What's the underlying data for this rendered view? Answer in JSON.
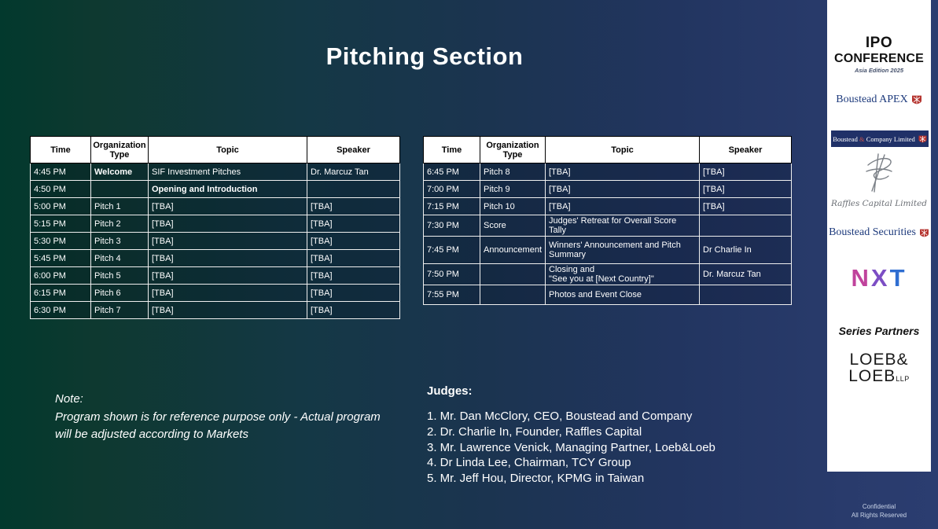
{
  "title": "Pitching Section",
  "table_headers": [
    "Time",
    "Organization Type",
    "Topic",
    "Speaker"
  ],
  "left_table": {
    "rows": [
      {
        "cells": [
          "4:45 PM",
          "Welcome",
          "SIF Investment Pitches",
          "Dr. Marcuz Tan"
        ],
        "bold": [
          1
        ]
      },
      {
        "cells": [
          "4:50 PM",
          "",
          "Opening and Introduction",
          ""
        ],
        "bold": [
          2
        ]
      },
      {
        "cells": [
          "5:00 PM",
          "Pitch 1",
          "[TBA]",
          "[TBA]"
        ]
      },
      {
        "cells": [
          "5:15 PM",
          "Pitch 2",
          "[TBA]",
          "[TBA]"
        ]
      },
      {
        "cells": [
          "5:30 PM",
          "Pitch 3",
          "[TBA]",
          "[TBA]"
        ]
      },
      {
        "cells": [
          "5:45 PM",
          "Pitch 4",
          "[TBA]",
          "[TBA]"
        ]
      },
      {
        "cells": [
          "6:00 PM",
          "Pitch 5",
          "[TBA]",
          "[TBA]"
        ]
      },
      {
        "cells": [
          "6:15 PM",
          "Pitch 6",
          "[TBA]",
          "[TBA]"
        ]
      },
      {
        "cells": [
          "6:30 PM",
          "Pitch 7",
          "[TBA]",
          "[TBA]"
        ]
      }
    ]
  },
  "right_table": {
    "rows": [
      {
        "cells": [
          "6:45 PM",
          "Pitch 8",
          "[TBA]",
          "[TBA]"
        ]
      },
      {
        "cells": [
          "7:00 PM",
          "Pitch 9",
          "[TBA]",
          "[TBA]"
        ]
      },
      {
        "cells": [
          "7:15 PM",
          "Pitch 10",
          "[TBA]",
          "[TBA]"
        ]
      },
      {
        "cells": [
          "7:30 PM",
          "Score",
          "Judges' Retreat for Overall Score Tally",
          ""
        ]
      },
      {
        "cells": [
          "7:45 PM",
          "Announcement",
          "Winners' Announcement and Pitch Summary",
          "Dr Charlie In"
        ]
      },
      {
        "cells": [
          "7:50 PM",
          "",
          "Closing and\n\"See you at [Next Country]\"",
          "Dr. Marcuz Tan"
        ]
      },
      {
        "cells": [
          "7:55 PM",
          "",
          "Photos and Event Close",
          ""
        ]
      }
    ]
  },
  "note": {
    "heading": "Note:",
    "body": "Program shown is for reference purpose only - Actual program\nwill be adjusted according to Markets"
  },
  "judges": {
    "heading": "Judges:",
    "items": [
      "1. Mr. Dan McClory, CEO, Boustead and Company",
      "2. Dr. Charlie In, Founder, Raffles Capital",
      "3. Mr. Lawrence Venick, Managing Partner, Loeb&Loeb",
      "4. Dr Linda Lee, Chairman, TCY Group",
      "5. Mr. Jeff Hou, Director, KPMG in Taiwan"
    ]
  },
  "sidebar": {
    "ipo": {
      "line1": "IPO",
      "line2": "CONFERENCE",
      "line3": "Asia Edition 2025"
    },
    "boustead_apex": "Boustead APEX",
    "boustead_company": {
      "pre": "Boustead",
      "amp": "&",
      "post": "Company Limited"
    },
    "raffles": "Raffles Capital Limited",
    "boustead_securities": "Boustead Securities",
    "nxt": {
      "letters": [
        {
          "ch": "N",
          "color": "#c0439c"
        },
        {
          "ch": "X",
          "color": "#7c4ec4"
        },
        {
          "ch": "T",
          "color": "#2f6ed1"
        }
      ]
    },
    "series_partners": "Series Partners",
    "loeb": {
      "line1": "LOEB&",
      "line2": "LOEB",
      "suffix": "LLP"
    },
    "crest_color": "#b5342f"
  },
  "footer": {
    "line1": "Confidential",
    "line2": "All Rights Reserved"
  }
}
